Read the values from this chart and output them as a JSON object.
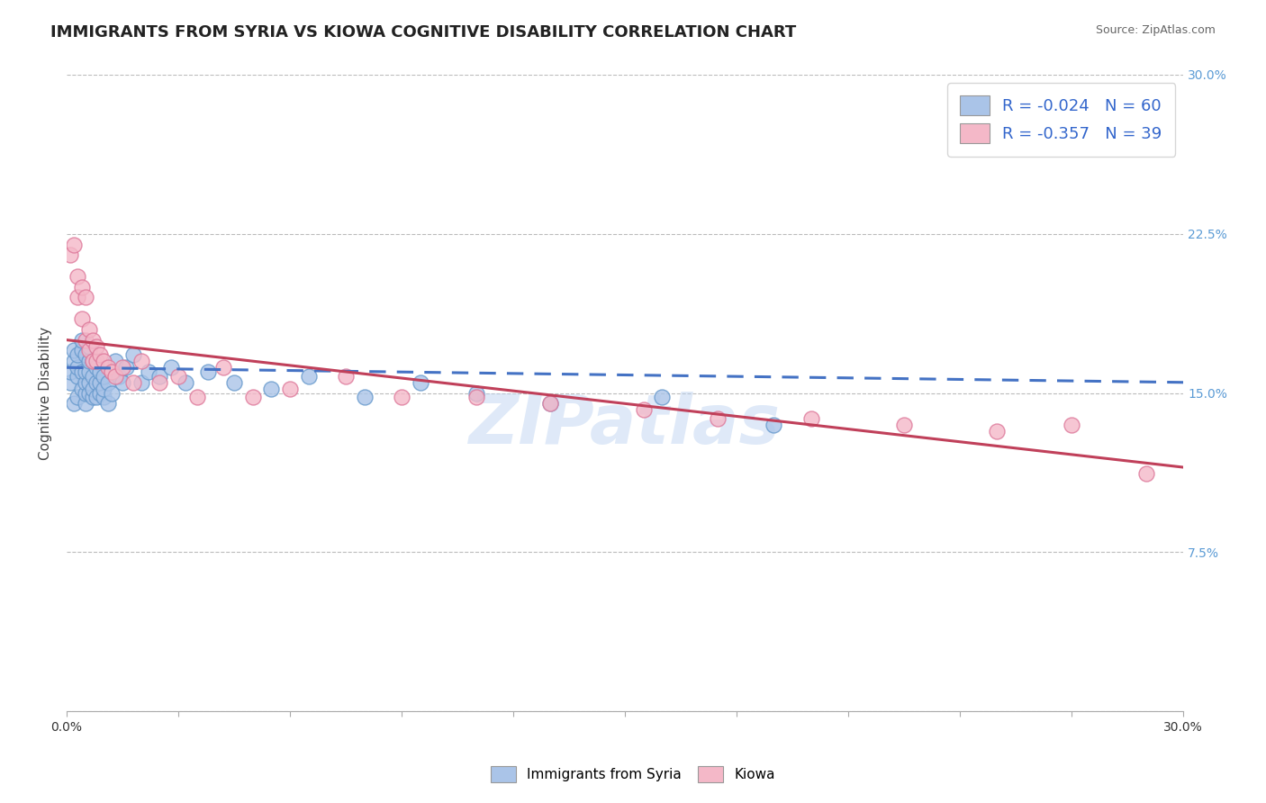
{
  "title": "IMMIGRANTS FROM SYRIA VS KIOWA COGNITIVE DISABILITY CORRELATION CHART",
  "source": "Source: ZipAtlas.com",
  "ylabel": "Cognitive Disability",
  "xlim": [
    0,
    0.3
  ],
  "ylim": [
    0,
    0.3
  ],
  "xticks": [
    0.0,
    0.03,
    0.06,
    0.09,
    0.12,
    0.15,
    0.18,
    0.21,
    0.24,
    0.27,
    0.3
  ],
  "yticks": [
    0.0,
    0.075,
    0.15,
    0.225,
    0.3
  ],
  "series1_color": "#aac4e8",
  "series1_edge": "#6699cc",
  "series2_color": "#f4b8c8",
  "series2_edge": "#dd7799",
  "trendline1_color": "#4472C4",
  "trendline2_color": "#C0405A",
  "background_color": "#ffffff",
  "grid_color": "#bbbbbb",
  "title_fontsize": 13,
  "label_fontsize": 11,
  "legend_r1": "-0.024",
  "legend_n1": "60",
  "legend_r2": "-0.357",
  "legend_n2": "39",
  "series1_x": [
    0.001,
    0.001,
    0.002,
    0.002,
    0.002,
    0.003,
    0.003,
    0.003,
    0.003,
    0.004,
    0.004,
    0.004,
    0.004,
    0.005,
    0.005,
    0.005,
    0.005,
    0.005,
    0.006,
    0.006,
    0.006,
    0.006,
    0.006,
    0.007,
    0.007,
    0.007,
    0.007,
    0.008,
    0.008,
    0.008,
    0.009,
    0.009,
    0.009,
    0.01,
    0.01,
    0.01,
    0.011,
    0.011,
    0.012,
    0.012,
    0.013,
    0.014,
    0.015,
    0.016,
    0.018,
    0.02,
    0.022,
    0.025,
    0.028,
    0.032,
    0.038,
    0.045,
    0.055,
    0.065,
    0.08,
    0.095,
    0.11,
    0.13,
    0.16,
    0.19
  ],
  "series1_y": [
    0.155,
    0.16,
    0.165,
    0.17,
    0.145,
    0.158,
    0.162,
    0.168,
    0.148,
    0.152,
    0.16,
    0.17,
    0.175,
    0.145,
    0.15,
    0.155,
    0.16,
    0.168,
    0.15,
    0.155,
    0.16,
    0.165,
    0.172,
    0.148,
    0.152,
    0.158,
    0.165,
    0.148,
    0.155,
    0.162,
    0.15,
    0.155,
    0.16,
    0.148,
    0.152,
    0.158,
    0.145,
    0.155,
    0.15,
    0.16,
    0.165,
    0.158,
    0.155,
    0.162,
    0.168,
    0.155,
    0.16,
    0.158,
    0.162,
    0.155,
    0.16,
    0.155,
    0.152,
    0.158,
    0.148,
    0.155,
    0.15,
    0.145,
    0.148,
    0.135
  ],
  "series2_x": [
    0.001,
    0.002,
    0.003,
    0.003,
    0.004,
    0.004,
    0.005,
    0.005,
    0.006,
    0.006,
    0.007,
    0.007,
    0.008,
    0.008,
    0.009,
    0.01,
    0.011,
    0.012,
    0.013,
    0.015,
    0.018,
    0.02,
    0.025,
    0.03,
    0.035,
    0.042,
    0.05,
    0.06,
    0.075,
    0.09,
    0.11,
    0.13,
    0.155,
    0.175,
    0.2,
    0.225,
    0.25,
    0.27,
    0.29
  ],
  "series2_y": [
    0.215,
    0.22,
    0.195,
    0.205,
    0.185,
    0.2,
    0.175,
    0.195,
    0.17,
    0.18,
    0.165,
    0.175,
    0.165,
    0.172,
    0.168,
    0.165,
    0.162,
    0.16,
    0.158,
    0.162,
    0.155,
    0.165,
    0.155,
    0.158,
    0.148,
    0.162,
    0.148,
    0.152,
    0.158,
    0.148,
    0.148,
    0.145,
    0.142,
    0.138,
    0.138,
    0.135,
    0.132,
    0.135,
    0.112
  ],
  "trendline1_start_x": 0.0,
  "trendline1_end_x": 0.3,
  "trendline1_start_y": 0.162,
  "trendline1_end_y": 0.155,
  "trendline2_start_x": 0.0,
  "trendline2_end_x": 0.3,
  "trendline2_start_y": 0.175,
  "trendline2_end_y": 0.115
}
